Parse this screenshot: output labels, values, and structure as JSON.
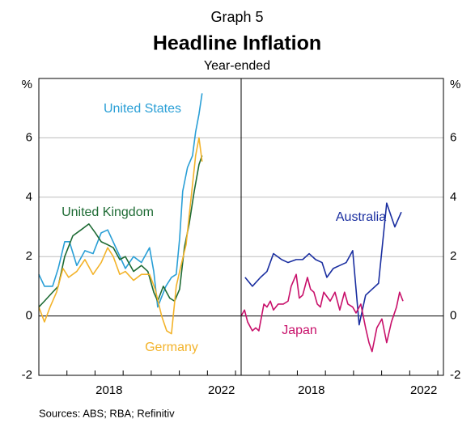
{
  "graph_label": "Graph 5",
  "title": "Headline Inflation",
  "subtitle": "Year-ended",
  "source": "Sources: ABS; RBA; Refinitiv",
  "chart_data": [
    {
      "type": "line",
      "xlim": [
        2016,
        2023.2
      ],
      "ylim": [
        -2,
        8
      ],
      "yticks": [
        -2,
        0,
        2,
        4,
        6
      ],
      "y_unit": "%",
      "xticks": [
        2017,
        2018,
        2019,
        2020,
        2021,
        2022,
        2023
      ],
      "xtick_labels": [
        {
          "value": 2018.5,
          "label": "2018"
        },
        {
          "value": 2022.5,
          "label": "2022"
        }
      ],
      "grid": true,
      "series": [
        {
          "name": "United States",
          "color": "#2a9fd6",
          "x": [
            2016.0,
            2016.2,
            2016.49,
            2016.69,
            2016.92,
            2017.09,
            2017.35,
            2017.64,
            2017.93,
            2018.22,
            2018.45,
            2018.79,
            2019.08,
            2019.37,
            2019.65,
            2019.94,
            2020.09,
            2020.23,
            2020.52,
            2020.72,
            2020.89,
            2021.01,
            2021.12,
            2021.29,
            2021.47,
            2021.58,
            2021.7,
            2021.81
          ],
          "values": [
            1.4,
            1.0,
            1.0,
            1.6,
            2.5,
            2.5,
            1.7,
            2.2,
            2.1,
            2.8,
            2.9,
            2.2,
            1.6,
            2.0,
            1.8,
            2.3,
            1.5,
            0.3,
            1.0,
            1.3,
            1.4,
            2.6,
            4.2,
            5.0,
            5.4,
            6.2,
            6.8,
            7.5
          ]
        },
        {
          "name": "United Kingdom",
          "color": "#1e6b34",
          "x": [
            2016.0,
            2016.2,
            2016.49,
            2016.69,
            2016.92,
            2017.21,
            2017.5,
            2017.78,
            2018.01,
            2018.22,
            2018.45,
            2018.65,
            2018.88,
            2019.08,
            2019.37,
            2019.65,
            2019.88,
            2020.09,
            2020.23,
            2020.43,
            2020.66,
            2020.83,
            2021.01,
            2021.18,
            2021.35,
            2021.53,
            2021.7,
            2021.81
          ],
          "values": [
            0.3,
            0.5,
            0.8,
            1.0,
            2.0,
            2.7,
            2.9,
            3.1,
            2.8,
            2.5,
            2.4,
            2.3,
            1.9,
            2.0,
            1.5,
            1.7,
            1.5,
            0.8,
            0.5,
            1.0,
            0.6,
            0.5,
            0.9,
            2.3,
            3.1,
            4.2,
            5.1,
            5.4
          ]
        },
        {
          "name": "Germany",
          "color": "#f3b32a",
          "x": [
            2016.0,
            2016.2,
            2016.4,
            2016.63,
            2016.86,
            2017.06,
            2017.35,
            2017.64,
            2017.93,
            2018.22,
            2018.45,
            2018.65,
            2018.88,
            2019.08,
            2019.37,
            2019.65,
            2019.94,
            2020.14,
            2020.37,
            2020.55,
            2020.72,
            2020.89,
            2021.06,
            2021.24,
            2021.41,
            2021.58,
            2021.7,
            2021.81
          ],
          "values": [
            0.3,
            -0.2,
            0.3,
            0.8,
            1.6,
            1.3,
            1.5,
            1.9,
            1.4,
            1.8,
            2.3,
            2.0,
            1.4,
            1.5,
            1.2,
            1.4,
            1.4,
            0.9,
            0.0,
            -0.5,
            -0.6,
            1.0,
            1.7,
            2.4,
            3.9,
            5.4,
            6.0,
            5.2
          ]
        }
      ]
    },
    {
      "type": "line",
      "xlim": [
        2016,
        2023.2
      ],
      "ylim": [
        -2,
        8
      ],
      "yticks": [
        -2,
        0,
        2,
        4,
        6
      ],
      "y_unit": "%",
      "xticks": [
        2017,
        2018,
        2019,
        2020,
        2021,
        2022,
        2023
      ],
      "xtick_labels": [
        {
          "value": 2018.5,
          "label": "2018"
        },
        {
          "value": 2022.5,
          "label": "2022"
        }
      ],
      "grid": true,
      "series": [
        {
          "name": "Australia",
          "color": "#1a2ea0",
          "x": [
            2016.14,
            2016.4,
            2016.69,
            2016.92,
            2017.15,
            2017.44,
            2017.67,
            2017.96,
            2018.19,
            2018.42,
            2018.65,
            2018.88,
            2019.05,
            2019.28,
            2019.51,
            2019.74,
            2019.97,
            2020.2,
            2020.43,
            2020.66,
            2020.89,
            2021.18,
            2021.47,
            2021.7
          ],
          "values": [
            1.3,
            1.0,
            1.3,
            1.5,
            2.1,
            1.9,
            1.8,
            1.9,
            1.9,
            2.1,
            1.9,
            1.8,
            1.3,
            1.6,
            1.7,
            1.8,
            2.2,
            -0.3,
            0.7,
            0.9,
            1.1,
            3.8,
            3.0,
            3.5
          ]
        },
        {
          "name": "Japan",
          "color": "#c8106a",
          "x": [
            2016.0,
            2016.12,
            2016.23,
            2016.4,
            2016.52,
            2016.63,
            2016.81,
            2016.92,
            2017.04,
            2017.15,
            2017.32,
            2017.5,
            2017.67,
            2017.78,
            2017.96,
            2018.07,
            2018.19,
            2018.36,
            2018.47,
            2018.59,
            2018.71,
            2018.82,
            2018.94,
            2019.17,
            2019.34,
            2019.51,
            2019.68,
            2019.8,
            2019.97,
            2020.09,
            2020.26,
            2020.43,
            2020.55,
            2020.66,
            2020.83,
            2021.01,
            2021.18,
            2021.35,
            2021.53,
            2021.64,
            2021.76
          ],
          "values": [
            0.0,
            0.2,
            -0.2,
            -0.5,
            -0.4,
            -0.5,
            0.4,
            0.3,
            0.5,
            0.2,
            0.4,
            0.4,
            0.5,
            1.0,
            1.4,
            0.6,
            0.7,
            1.3,
            0.9,
            0.8,
            0.4,
            0.3,
            0.8,
            0.5,
            0.8,
            0.2,
            0.8,
            0.4,
            0.3,
            0.1,
            0.4,
            -0.4,
            -0.9,
            -1.2,
            -0.4,
            -0.1,
            -0.9,
            -0.2,
            0.3,
            0.8,
            0.5
          ]
        }
      ]
    }
  ]
}
